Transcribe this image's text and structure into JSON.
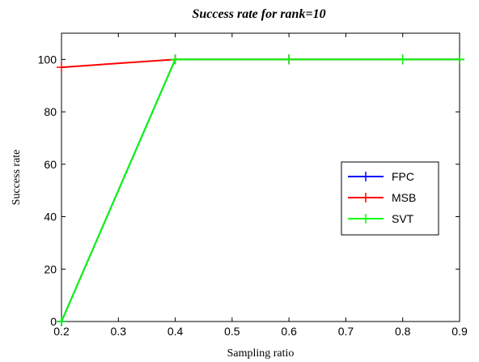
{
  "chart_data": {
    "type": "line",
    "title": "Success rate for rank=10",
    "xlabel": "Sampling ratio",
    "ylabel": "Success rate",
    "xlim": [
      0.2,
      0.9
    ],
    "ylim": [
      0,
      110
    ],
    "xticks": [
      "0.2",
      "0.3",
      "0.4",
      "0.5",
      "0.6",
      "0.7",
      "0.8",
      "0.9"
    ],
    "yticks": [
      "0",
      "20",
      "40",
      "60",
      "80",
      "100"
    ],
    "grid": false,
    "legend_position": "right",
    "series": [
      {
        "name": "FPC",
        "color": "#0000ff",
        "x": [
          0.2,
          0.4,
          0.6,
          0.8,
          0.9
        ],
        "y": [
          0,
          100,
          100,
          100,
          100
        ]
      },
      {
        "name": "MSB",
        "color": "#ff0000",
        "x": [
          0.2,
          0.4,
          0.6,
          0.8,
          0.9
        ],
        "y": [
          97,
          100,
          100,
          100,
          100
        ]
      },
      {
        "name": "SVT",
        "color": "#00ff00",
        "x": [
          0.2,
          0.4,
          0.6,
          0.8,
          0.9
        ],
        "y": [
          0,
          100,
          100,
          100,
          100
        ]
      }
    ]
  }
}
